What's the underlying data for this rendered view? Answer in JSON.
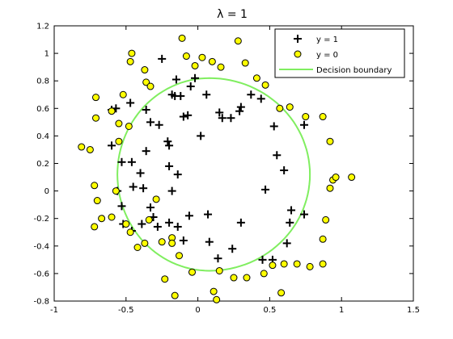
{
  "chart_data": {
    "type": "scatter",
    "title": "λ = 1",
    "xlabel": "",
    "ylabel": "",
    "xlim": [
      -1,
      1.5
    ],
    "ylim": [
      -0.8,
      1.2
    ],
    "xticks": [
      -1,
      -0.5,
      0,
      0.5,
      1,
      1.5
    ],
    "yticks": [
      -0.8,
      -0.6,
      -0.4,
      -0.2,
      0,
      0.2,
      0.4,
      0.6,
      0.8,
      1,
      1.2
    ],
    "xtick_labels": [
      "-1",
      "-0.5",
      "0",
      "0.5",
      "1",
      "1.5"
    ],
    "ytick_labels": [
      "-0.8",
      "-0.6",
      "-0.4",
      "-0.2",
      "0",
      "0.2",
      "0.4",
      "0.6",
      "0.8",
      "1",
      "1.2"
    ],
    "grid": false,
    "legend_position": "top-right",
    "series": [
      {
        "name": "y = 1",
        "marker": "plus",
        "color": "#000000",
        "points": [
          [
            -0.6,
            0.59
          ],
          [
            -0.57,
            0.6
          ],
          [
            -0.47,
            0.64
          ],
          [
            -0.36,
            0.59
          ],
          [
            -0.25,
            0.96
          ],
          [
            -0.18,
            0.7
          ],
          [
            -0.16,
            0.69
          ],
          [
            -0.15,
            0.81
          ],
          [
            -0.12,
            0.69
          ],
          [
            -0.1,
            0.54
          ],
          [
            -0.07,
            0.55
          ],
          [
            -0.05,
            0.76
          ],
          [
            -0.02,
            0.82
          ],
          [
            0.06,
            0.7
          ],
          [
            0.15,
            0.57
          ],
          [
            0.17,
            0.53
          ],
          [
            0.23,
            0.53
          ],
          [
            0.3,
            0.61
          ],
          [
            0.29,
            0.58
          ],
          [
            0.37,
            0.7
          ],
          [
            0.44,
            0.67
          ],
          [
            0.53,
            0.47
          ],
          [
            0.55,
            0.26
          ],
          [
            0.6,
            0.15
          ],
          [
            0.74,
            0.48
          ],
          [
            0.74,
            -0.17
          ],
          [
            0.65,
            -0.14
          ],
          [
            0.64,
            -0.23
          ],
          [
            0.62,
            -0.38
          ],
          [
            0.52,
            -0.5
          ],
          [
            0.45,
            -0.5
          ],
          [
            0.47,
            0.01
          ],
          [
            0.3,
            -0.23
          ],
          [
            0.24,
            -0.42
          ],
          [
            0.14,
            -0.49
          ],
          [
            0.08,
            -0.37
          ],
          [
            0.07,
            -0.17
          ],
          [
            0.02,
            0.4
          ],
          [
            -0.06,
            -0.18
          ],
          [
            -0.1,
            -0.36
          ],
          [
            -0.14,
            -0.26
          ],
          [
            -0.2,
            -0.23
          ],
          [
            -0.28,
            -0.26
          ],
          [
            -0.31,
            -0.19
          ],
          [
            -0.33,
            -0.12
          ],
          [
            -0.39,
            -0.24
          ],
          [
            -0.46,
            -0.29
          ],
          [
            -0.52,
            -0.24
          ],
          [
            -0.53,
            -0.11
          ],
          [
            -0.56,
            0.0
          ],
          [
            -0.6,
            0.33
          ],
          [
            -0.53,
            0.21
          ],
          [
            -0.46,
            0.21
          ],
          [
            -0.45,
            0.03
          ],
          [
            -0.38,
            0.02
          ],
          [
            -0.36,
            0.29
          ],
          [
            -0.33,
            0.5
          ],
          [
            -0.27,
            0.48
          ],
          [
            -0.2,
            0.33
          ],
          [
            -0.2,
            0.18
          ],
          [
            -0.18,
            0.0
          ],
          [
            -0.21,
            0.36
          ],
          [
            -0.14,
            0.12
          ],
          [
            -0.4,
            0.13
          ]
        ]
      },
      {
        "name": "y = 0",
        "marker": "circle",
        "color": "#ffff00",
        "points": [
          [
            -0.46,
            1.0
          ],
          [
            -0.47,
            0.94
          ],
          [
            -0.37,
            0.88
          ],
          [
            -0.36,
            0.79
          ],
          [
            -0.33,
            0.76
          ],
          [
            -0.11,
            1.11
          ],
          [
            -0.08,
            0.98
          ],
          [
            -0.02,
            0.91
          ],
          [
            0.03,
            0.97
          ],
          [
            0.1,
            0.94
          ],
          [
            0.16,
            0.9
          ],
          [
            0.28,
            1.09
          ],
          [
            0.33,
            0.93
          ],
          [
            0.41,
            0.82
          ],
          [
            0.47,
            0.77
          ],
          [
            0.57,
            0.6
          ],
          [
            0.64,
            0.61
          ],
          [
            0.75,
            0.54
          ],
          [
            0.87,
            0.54
          ],
          [
            0.92,
            0.36
          ],
          [
            0.94,
            0.08
          ],
          [
            0.96,
            0.1
          ],
          [
            1.07,
            0.1
          ],
          [
            0.92,
            0.02
          ],
          [
            0.89,
            -0.21
          ],
          [
            0.87,
            -0.35
          ],
          [
            0.87,
            -0.53
          ],
          [
            0.78,
            -0.55
          ],
          [
            0.69,
            -0.53
          ],
          [
            0.6,
            -0.53
          ],
          [
            0.52,
            -0.54
          ],
          [
            0.46,
            -0.6
          ],
          [
            0.34,
            -0.63
          ],
          [
            0.25,
            -0.63
          ],
          [
            0.15,
            -0.58
          ],
          [
            0.11,
            -0.73
          ],
          [
            -0.04,
            -0.59
          ],
          [
            -0.23,
            -0.64
          ],
          [
            -0.16,
            -0.76
          ],
          [
            0.13,
            -0.79
          ],
          [
            0.58,
            -0.74
          ],
          [
            -0.13,
            -0.47
          ],
          [
            -0.18,
            -0.34
          ],
          [
            -0.18,
            -0.38
          ],
          [
            -0.25,
            -0.37
          ],
          [
            -0.29,
            -0.06
          ],
          [
            -0.34,
            -0.21
          ],
          [
            -0.42,
            -0.41
          ],
          [
            -0.47,
            -0.3
          ],
          [
            -0.5,
            -0.24
          ],
          [
            -0.6,
            -0.19
          ],
          [
            -0.67,
            -0.2
          ],
          [
            -0.72,
            -0.26
          ],
          [
            -0.7,
            -0.07
          ],
          [
            -0.72,
            0.04
          ],
          [
            -0.75,
            0.3
          ],
          [
            -0.81,
            0.32
          ],
          [
            -0.57,
            0.0
          ],
          [
            -0.55,
            0.49
          ],
          [
            -0.52,
            0.7
          ],
          [
            -0.6,
            0.58
          ],
          [
            -0.71,
            0.53
          ],
          [
            -0.71,
            0.68
          ],
          [
            -0.48,
            0.47
          ],
          [
            -0.55,
            0.36
          ],
          [
            -0.37,
            -0.38
          ]
        ]
      }
    ],
    "decision_boundary": {
      "name": "Decision boundary",
      "color": "#80ee60",
      "center": [
        0.08,
        0.12
      ],
      "radii_x": [
        0.64,
        0.7
      ],
      "radii_y": [
        0.7,
        0.7
      ]
    }
  }
}
